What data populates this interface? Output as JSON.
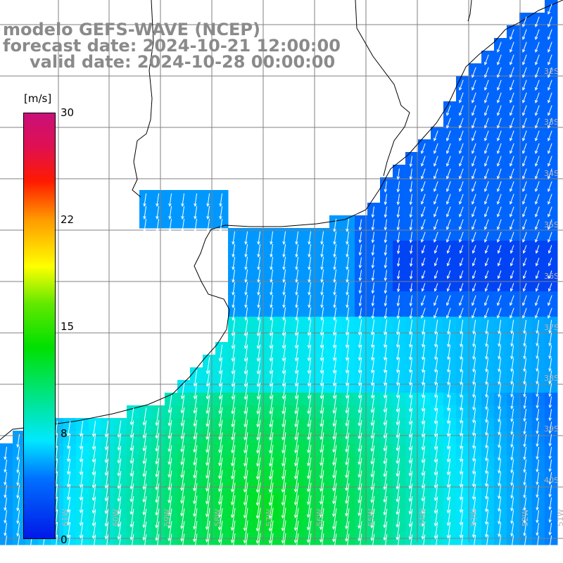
{
  "title": {
    "line1": "modelo GEFS-WAVE (NCEP)",
    "line2": "forecast date: 2024-10-21 12:00:00",
    "line3": "valid date: 2024-10-28 00:00:00"
  },
  "colorbar": {
    "unit": "[m/s]",
    "ticks": [
      "30",
      "22",
      "15",
      "8",
      "0"
    ],
    "min": 0,
    "max": 30
  },
  "lat_labels": [
    "32S",
    "33S",
    "34S",
    "35S",
    "36S",
    "37S",
    "38S",
    "39S",
    "40S"
  ],
  "lon_labels": [
    "61W",
    "60W",
    "59W",
    "58W",
    "57W",
    "56W",
    "55W",
    "54W",
    "53W",
    "52W",
    "51W"
  ],
  "colors": {
    "land": "#ffffff",
    "coast": "#000000",
    "grid": "#808080",
    "arrows": "#ffffff",
    "title_text": "#8a8a8a"
  }
}
